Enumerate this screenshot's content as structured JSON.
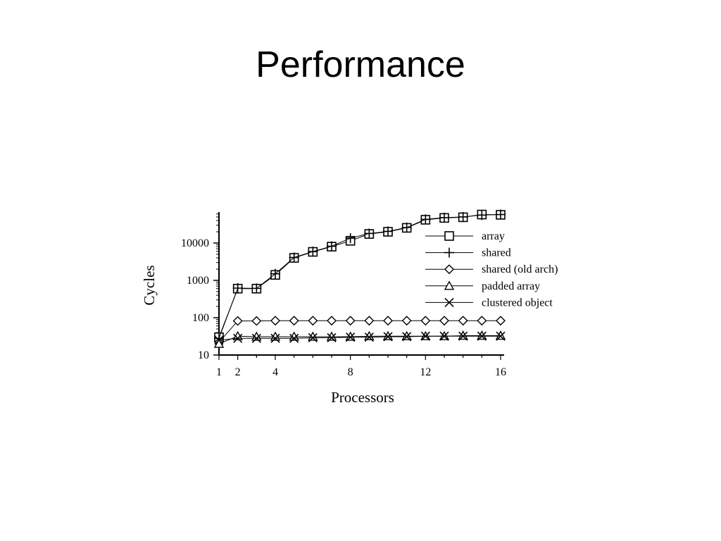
{
  "slide": {
    "title": "Performance"
  },
  "chart_data": {
    "type": "line",
    "xlabel": "Processors",
    "ylabel": "Cycles",
    "y_scale": "log",
    "ylim": [
      10,
      60000
    ],
    "xlim": [
      1,
      16
    ],
    "x_ticks": [
      1,
      2,
      4,
      8,
      12,
      16
    ],
    "y_ticks": [
      10,
      100,
      1000,
      10000
    ],
    "y_tick_labels": [
      "10",
      "100",
      "1000",
      "10000"
    ],
    "x": [
      1,
      2,
      3,
      4,
      5,
      6,
      7,
      8,
      9,
      10,
      11,
      12,
      13,
      14,
      15,
      16
    ],
    "legend_position": "right",
    "grid": false,
    "series": [
      {
        "name": "array",
        "marker": "square",
        "values": [
          30,
          600,
          600,
          1400,
          4000,
          5800,
          8000,
          11500,
          17500,
          20000,
          25500,
          42000,
          47000,
          49000,
          58000,
          57000
        ]
      },
      {
        "name": "shared",
        "marker": "plus",
        "values": [
          28,
          620,
          610,
          1500,
          4100,
          5900,
          8200,
          13500,
          18000,
          20500,
          26000,
          43000,
          48000,
          50000,
          56000,
          58000
        ]
      },
      {
        "name": "shared (old arch)",
        "marker": "diamond",
        "values": [
          22,
          82,
          82,
          83,
          83,
          83,
          83,
          83,
          83,
          83,
          83,
          83,
          83,
          83,
          83,
          83
        ]
      },
      {
        "name": "padded array",
        "marker": "triangle",
        "values": [
          20,
          32,
          31,
          31,
          31,
          31,
          31,
          31,
          32,
          32,
          32,
          32,
          32,
          33,
          33,
          33
        ]
      },
      {
        "name": "clustered object",
        "marker": "x",
        "values": [
          25,
          28,
          28,
          28,
          28,
          29,
          29,
          30,
          30,
          31,
          31,
          32,
          32,
          32,
          32,
          32
        ]
      }
    ]
  }
}
